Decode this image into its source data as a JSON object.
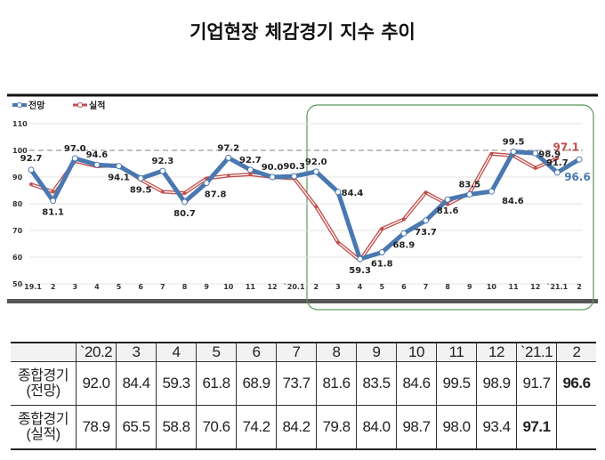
{
  "title": "기업현장 체감경기 지수 추이",
  "chart_data": {
    "type": "line",
    "categories": [
      "`19.1",
      "2",
      "3",
      "4",
      "5",
      "6",
      "7",
      "8",
      "9",
      "10",
      "11",
      "12",
      "`20.1",
      "2",
      "3",
      "4",
      "5",
      "6",
      "7",
      "8",
      "9",
      "10",
      "11",
      "12",
      "`21.1",
      "2"
    ],
    "ylim": [
      50,
      110
    ],
    "yticks": [
      50,
      60,
      70,
      80,
      90,
      100,
      110
    ],
    "reference_line": 100,
    "grid": true,
    "legend_position": "top-left",
    "highlight_box": "`20.2 - `21.2",
    "series": [
      {
        "name": "전망",
        "color": "#4a78b0",
        "values": [
          92.7,
          81.1,
          97.0,
          94.6,
          94.1,
          89.5,
          92.3,
          80.7,
          87.8,
          97.2,
          92.7,
          90.0,
          90.3,
          92.0,
          84.4,
          59.3,
          61.8,
          68.9,
          73.7,
          81.6,
          83.5,
          84.6,
          99.5,
          98.9,
          91.7,
          96.6
        ]
      },
      {
        "name": "실적",
        "color": "#c0504d",
        "values": [
          87.3,
          84.5,
          96.0,
          94.0,
          94.5,
          89.0,
          84.5,
          84.0,
          89.5,
          90.5,
          91.0,
          90.0,
          89.5,
          78.9,
          65.5,
          58.8,
          70.6,
          74.2,
          84.2,
          79.8,
          84.0,
          98.7,
          98.0,
          93.4,
          97.1,
          null
        ],
        "labeled_values": {
          "24": "97.1"
        }
      }
    ]
  },
  "table": {
    "headers": [
      "",
      "`20.2",
      "3",
      "4",
      "5",
      "6",
      "7",
      "8",
      "9",
      "10",
      "11",
      "12",
      "`21.1",
      "2"
    ],
    "rows": [
      {
        "label": [
          "종합경기",
          "(전망)"
        ],
        "values": [
          "92.0",
          "84.4",
          "59.3",
          "61.8",
          "68.9",
          "73.7",
          "81.6",
          "83.5",
          "84.6",
          "99.5",
          "98.9",
          "91.7",
          "96.6"
        ]
      },
      {
        "label": [
          "종합경기",
          "(실적)"
        ],
        "values": [
          "78.9",
          "65.5",
          "58.8",
          "70.6",
          "74.2",
          "84.2",
          "79.8",
          "84.0",
          "98.7",
          "98.0",
          "93.4",
          "97.1",
          ""
        ]
      }
    ]
  }
}
